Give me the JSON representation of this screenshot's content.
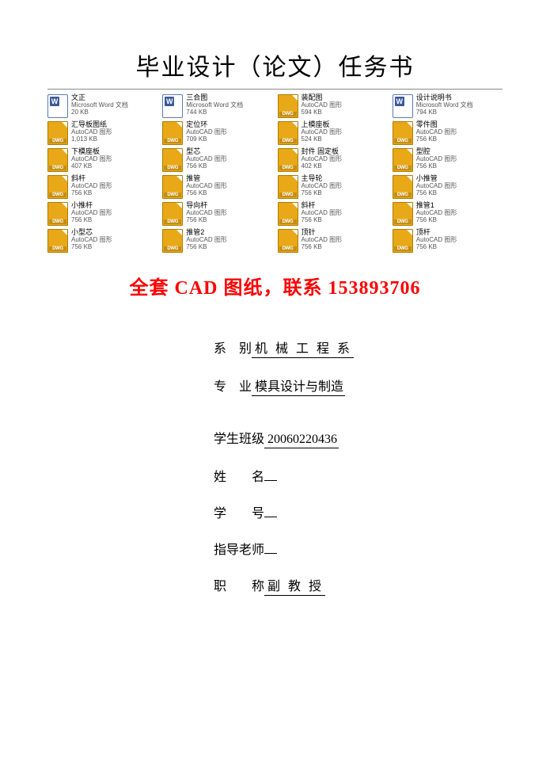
{
  "title": "毕业设计（论文）任务书",
  "contact_line": "全套 CAD 图纸，联系 153893706",
  "files": [
    {
      "icon": "word",
      "name": "文正",
      "sub": "Microsoft Word 文档",
      "size": "20 KB"
    },
    {
      "icon": "word",
      "name": "三合图",
      "sub": "Microsoft Word 文档",
      "size": "744 KB"
    },
    {
      "icon": "dwg",
      "name": "装配图",
      "sub": "AutoCAD 图形",
      "size": "594 KB"
    },
    {
      "icon": "word",
      "name": "设计说明书",
      "sub": "Microsoft Word 文档",
      "size": "794 KB"
    },
    {
      "icon": "dwg",
      "name": "汇导板图纸",
      "sub": "AutoCAD 图形",
      "size": "1,013 KB"
    },
    {
      "icon": "dwg",
      "name": "定位环",
      "sub": "AutoCAD 图形",
      "size": "709 KB"
    },
    {
      "icon": "dwg",
      "name": "上模座板",
      "sub": "AutoCAD 图形",
      "size": "524 KB"
    },
    {
      "icon": "dwg",
      "name": "零件图",
      "sub": "AutoCAD 图形",
      "size": "756 KB"
    },
    {
      "icon": "dwg",
      "name": "下模座板",
      "sub": "AutoCAD 图形",
      "size": "407 KB"
    },
    {
      "icon": "dwg",
      "name": "型芯",
      "sub": "AutoCAD 图形",
      "size": "756 KB"
    },
    {
      "icon": "dwg",
      "name": "封件 固定板",
      "sub": "AutoCAD 图形",
      "size": "402 KB"
    },
    {
      "icon": "dwg",
      "name": "型腔",
      "sub": "AutoCAD 图形",
      "size": "756 KB"
    },
    {
      "icon": "dwg",
      "name": "斜杆",
      "sub": "AutoCAD 图形",
      "size": "756 KB"
    },
    {
      "icon": "dwg",
      "name": "推管",
      "sub": "AutoCAD 图形",
      "size": "756 KB"
    },
    {
      "icon": "dwg",
      "name": "主导轮",
      "sub": "AutoCAD 图形",
      "size": "756 KB"
    },
    {
      "icon": "dwg",
      "name": "小推管",
      "sub": "AutoCAD 图形",
      "size": "756 KB"
    },
    {
      "icon": "dwg",
      "name": "小推杆",
      "sub": "AutoCAD 图形",
      "size": "756 KB"
    },
    {
      "icon": "dwg",
      "name": "导向杆",
      "sub": "AutoCAD 图形",
      "size": "756 KB"
    },
    {
      "icon": "dwg",
      "name": "斜杆",
      "sub": "AutoCAD 图形",
      "size": "756 KB"
    },
    {
      "icon": "dwg",
      "name": "推管1",
      "sub": "AutoCAD 图形",
      "size": "756 KB"
    },
    {
      "icon": "dwg",
      "name": "小型芯",
      "sub": "AutoCAD 图形",
      "size": "756 KB"
    },
    {
      "icon": "dwg",
      "name": "推管2",
      "sub": "AutoCAD 图形",
      "size": "756 KB"
    },
    {
      "icon": "dwg",
      "name": "顶针",
      "sub": "AutoCAD 图形",
      "size": "756 KB"
    },
    {
      "icon": "dwg",
      "name": "顶杆",
      "sub": "AutoCAD 图形",
      "size": "756 KB"
    }
  ],
  "form": {
    "dept_label": "系　别",
    "dept_value": "机 械 工 程 系",
    "major_label": "专　业",
    "major_value": " 模具设计与制造",
    "class_label": "学生班级",
    "class_value": " 20060220436",
    "name_label": "姓　　名",
    "name_value": "",
    "id_label": "学　　号",
    "id_value": "",
    "advisor_label": "指导老师",
    "advisor_value": "",
    "title_label": "职　　称",
    "title_value": "副 教 授"
  }
}
